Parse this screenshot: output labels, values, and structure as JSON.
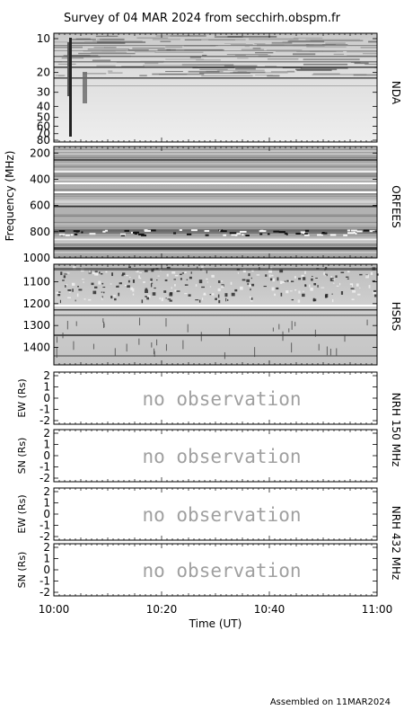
{
  "title": "Survey of 04 MAR 2024 from secchirh.obspm.fr",
  "footer": "Assembled on 11MAR2024",
  "x_axis": {
    "label": "Time (UT)",
    "ticks": [
      "10:00",
      "10:20",
      "10:40",
      "11:00"
    ]
  },
  "shared_ylabel": "Frequency (MHz)",
  "chart_data": [
    {
      "type": "heatmap",
      "panel": "NDA",
      "right_label": "NDA",
      "x_range": [
        "10:00",
        "11:00"
      ],
      "y_ticks": [
        "10",
        "20",
        "30",
        "40",
        "50",
        "60",
        "70",
        "80"
      ],
      "y_range": [
        10,
        80
      ],
      "y_scale": "log"
    },
    {
      "type": "heatmap",
      "panel": "ORFEES",
      "right_label": "ORFEES",
      "x_range": [
        "10:00",
        "11:00"
      ],
      "y_ticks": [
        "200",
        "400",
        "600",
        "800",
        "1000"
      ],
      "y_range": [
        150,
        1000
      ]
    },
    {
      "type": "heatmap",
      "panel": "HSRS",
      "right_label": "HSRS",
      "x_range": [
        "10:00",
        "11:00"
      ],
      "y_ticks": [
        "1100",
        "1200",
        "1300",
        "1400"
      ],
      "y_range": [
        1020,
        1480
      ]
    }
  ],
  "nrh_panels": [
    {
      "ylabel": "EW (Rs)",
      "ticks": [
        "2",
        "1",
        "0",
        "-1",
        "-2"
      ],
      "message": "no observation"
    },
    {
      "ylabel": "SN (Rs)",
      "ticks": [
        "2",
        "1",
        "0",
        "-1",
        "-2"
      ],
      "message": "no observation"
    },
    {
      "ylabel": "EW (Rs)",
      "ticks": [
        "2",
        "1",
        "0",
        "-1",
        "-2"
      ],
      "message": "no observation"
    },
    {
      "ylabel": "SN (Rs)",
      "ticks": [
        "2",
        "1",
        "0",
        "-1",
        "-2"
      ],
      "message": "no observation"
    }
  ],
  "nrh_right_labels": [
    "NRH 150 MHz",
    "NRH 432 MHz"
  ]
}
